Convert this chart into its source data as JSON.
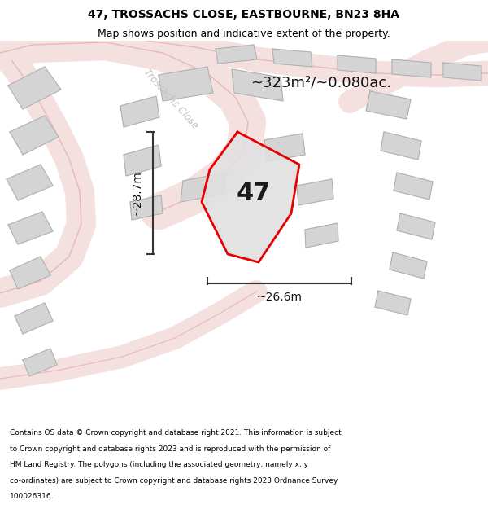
{
  "title": "47, TROSSACHS CLOSE, EASTBOURNE, BN23 8HA",
  "subtitle": "Map shows position and indicative extent of the property.",
  "area_text": "~323m²/~0.080ac.",
  "property_number": "47",
  "dim_width": "~26.6m",
  "dim_height": "~28.7m",
  "street_label": "Trossachs Close",
  "footer_lines": [
    "Contains OS data © Crown copyright and database right 2021. This information is subject",
    "to Crown copyright and database rights 2023 and is reproduced with the permission of",
    "HM Land Registry. The polygons (including the associated geometry, namely x, y",
    "co-ordinates) are subject to Crown copyright and database rights 2023 Ordnance Survey",
    "100026316."
  ],
  "bg_color": "#f2f2f2",
  "property_fill": "#e0e0e0",
  "property_edge": "#e60000",
  "dim_color": "#333333",
  "title_color": "#000000",
  "footer_color": "#000000",
  "street_color": "#c0c0c0",
  "road_fill": "#f5e0e0",
  "road_edge": "#e8b8b8",
  "building_fill": "#d4d4d4",
  "building_edge": "#aaaaaa"
}
